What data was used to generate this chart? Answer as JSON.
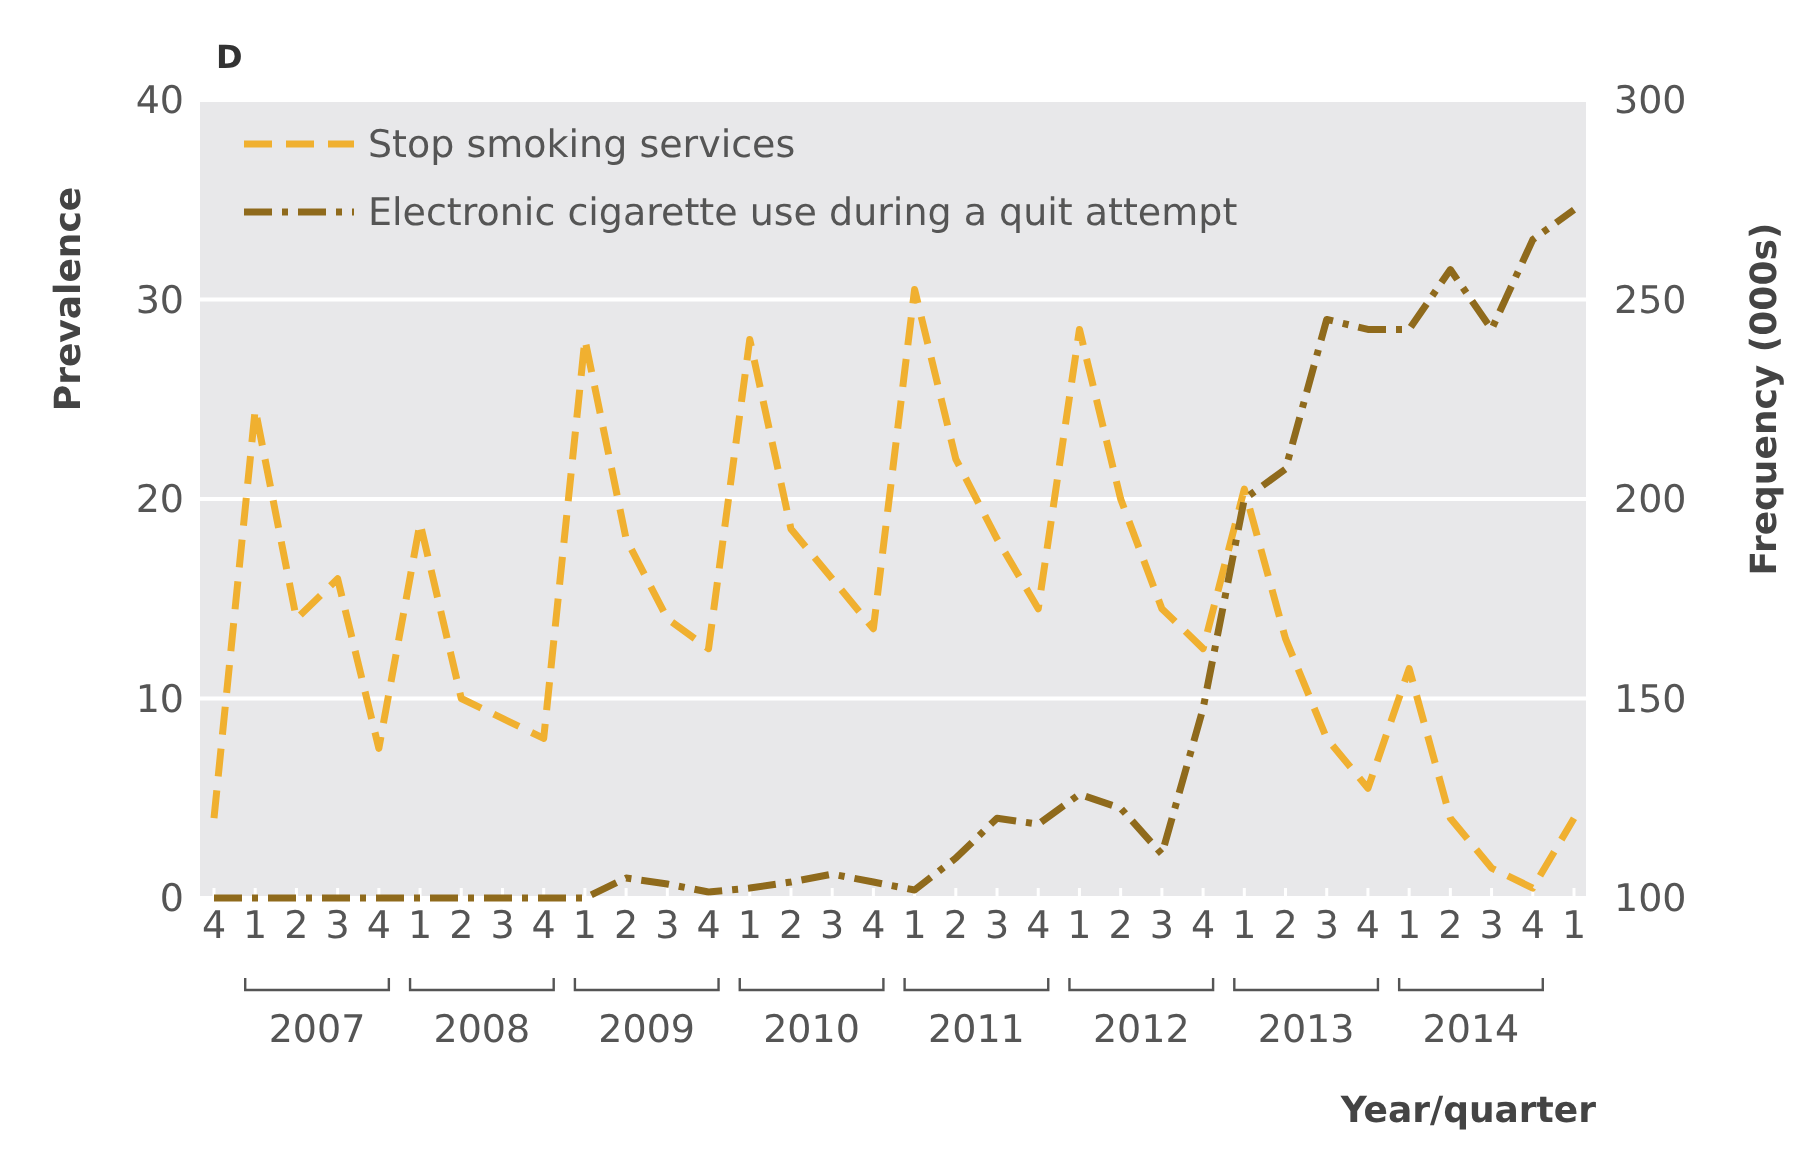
{
  "chart_data": {
    "type": "line",
    "title": "D",
    "xlabel": "Year/quarter",
    "ylabel": "Prevalence",
    "y2label": "Frequency (000s)",
    "categories": [
      "4",
      "1",
      "2",
      "3",
      "4",
      "1",
      "2",
      "3",
      "4",
      "1",
      "2",
      "3",
      "4",
      "1",
      "2",
      "3",
      "4",
      "1",
      "2",
      "3",
      "4",
      "1",
      "2",
      "3",
      "4",
      "1",
      "2",
      "3",
      "4",
      "1",
      "2",
      "3",
      "4",
      "1"
    ],
    "annotations": [
      "2007",
      "2008",
      "2009",
      "2010",
      "2011",
      "2012",
      "2013",
      "2014"
    ],
    "series": [
      {
        "name": "Stop smoking services",
        "color": "#f0b030",
        "axis": "y2",
        "line_style": "dashed",
        "values": [
          120,
          222.5,
          170,
          180,
          137.5,
          194,
          150,
          145,
          140,
          240,
          190,
          170,
          162.5,
          240,
          192.5,
          180,
          167.5,
          252.5,
          210,
          190,
          172.5,
          242.5,
          200,
          172.5,
          162.5,
          202.5,
          165,
          140,
          127.5,
          157.5,
          120,
          107.5,
          102.5,
          120
        ]
      },
      {
        "name": "Electronic cigarette use during a quit attempt",
        "color": "#8f6a1c",
        "axis": "y",
        "line_style": "dashdot",
        "values": [
          0,
          0,
          0,
          0,
          0,
          0,
          0,
          0,
          0,
          0,
          1,
          0.7,
          0.3,
          0.5,
          0.8,
          1.2,
          0.8,
          0.4,
          2,
          4,
          3.7,
          5.2,
          4.5,
          2.2,
          9.5,
          20,
          21.5,
          29,
          28.5,
          28.5,
          31.5,
          28.5,
          33,
          34.5
        ]
      }
    ],
    "ylim": [
      0,
      40
    ],
    "yticks": [
      0,
      10,
      20,
      30,
      40
    ],
    "y2lim": [
      100,
      300
    ],
    "y2ticks": [
      100,
      150,
      200,
      250,
      300
    ],
    "grid": "y",
    "legend": "top left"
  }
}
